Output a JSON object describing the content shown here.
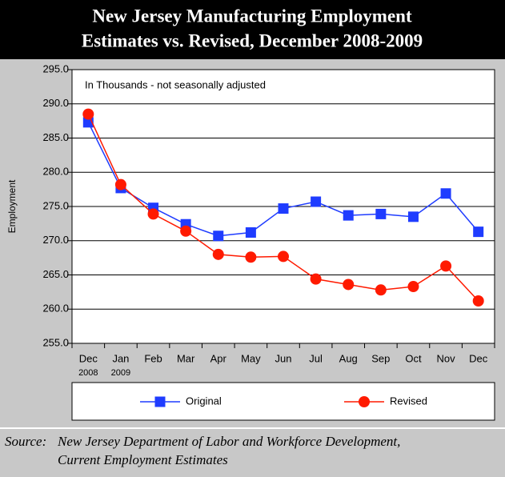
{
  "chart_data": {
    "type": "line",
    "title": [
      "New Jersey Manufacturing Employment",
      "Estimates vs. Revised, December 2008-2009"
    ],
    "annotation": "In Thousands - not seasonally adjusted",
    "y_label": "Employment",
    "categories": [
      "Dec",
      "Jan",
      "Feb",
      "Mar",
      "Apr",
      "May",
      "Jun",
      "Jul",
      "Aug",
      "Sep",
      "Oct",
      "Nov",
      "Dec"
    ],
    "year_labels": [
      "2008",
      "2009",
      null,
      null,
      null,
      null,
      null,
      null,
      null,
      null,
      null,
      null,
      null
    ],
    "series": [
      {
        "name": "Original",
        "color": "#1f3cff",
        "marker": "square",
        "values": [
          287.3,
          277.7,
          274.8,
          272.4,
          270.7,
          271.2,
          274.7,
          275.7,
          273.7,
          273.9,
          273.5,
          276.9,
          271.3
        ]
      },
      {
        "name": "Revised",
        "color": "#ff1a00",
        "marker": "circle",
        "values": [
          288.5,
          278.2,
          273.9,
          271.4,
          268.0,
          267.6,
          267.7,
          264.4,
          263.6,
          262.8,
          263.3,
          266.3,
          261.2
        ]
      }
    ],
    "ylim": [
      255,
      295
    ],
    "yticks": [
      {
        "value": 255,
        "label": "255.0"
      },
      {
        "value": 260,
        "label": "260.0"
      },
      {
        "value": 265,
        "label": "265.0"
      },
      {
        "value": 270,
        "label": "270.0"
      },
      {
        "value": 275,
        "label": "275.0"
      },
      {
        "value": 280,
        "label": "280.0"
      },
      {
        "value": 285,
        "label": "285.0"
      },
      {
        "value": 290,
        "label": "290.0"
      },
      {
        "value": 295,
        "label": "295.0"
      }
    ],
    "grid": true,
    "source_label": "Source:",
    "source": [
      "New Jersey Department of Labor and Workforce Development,",
      "Current Employment Estimates"
    ]
  }
}
